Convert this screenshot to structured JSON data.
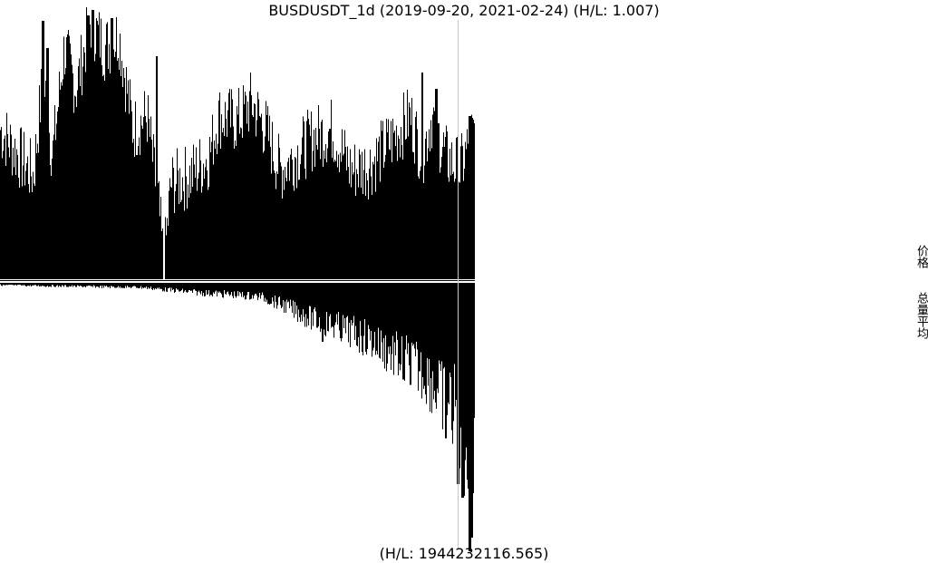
{
  "chart_data": {
    "type": "bar",
    "title": "BUSDUSDT_1d (2019-09-20, 2021-02-24) (H/L: 1.007)",
    "panels": [
      {
        "name": "价格",
        "hl_ratio": 1.007,
        "profile": [
          [
            0,
            0.55
          ],
          [
            0.04,
            0.45
          ],
          [
            0.07,
            0.38
          ],
          [
            0.09,
            0.75
          ],
          [
            0.11,
            0.45
          ],
          [
            0.135,
            0.85
          ],
          [
            0.16,
            0.7
          ],
          [
            0.19,
            0.95
          ],
          [
            0.22,
            0.85
          ],
          [
            0.25,
            0.9
          ],
          [
            0.28,
            0.55
          ],
          [
            0.31,
            0.6
          ],
          [
            0.335,
            0.25
          ],
          [
            0.345,
            0.05
          ],
          [
            0.36,
            0.35
          ],
          [
            0.4,
            0.38
          ],
          [
            0.44,
            0.45
          ],
          [
            0.46,
            0.6
          ],
          [
            0.5,
            0.58
          ],
          [
            0.53,
            0.65
          ],
          [
            0.56,
            0.55
          ],
          [
            0.59,
            0.4
          ],
          [
            0.62,
            0.45
          ],
          [
            0.66,
            0.52
          ],
          [
            0.7,
            0.55
          ],
          [
            0.74,
            0.4
          ],
          [
            0.78,
            0.42
          ],
          [
            0.83,
            0.52
          ],
          [
            0.865,
            0.6
          ],
          [
            0.89,
            0.45
          ],
          [
            0.91,
            0.6
          ],
          [
            0.94,
            0.45
          ],
          [
            0.97,
            0.4
          ],
          [
            1.0,
            0.55
          ]
        ],
        "spikes": [
          [
            0.09,
            0.95
          ],
          [
            0.1,
            0.85
          ],
          [
            0.185,
            0.97
          ],
          [
            0.195,
            0.99
          ],
          [
            0.235,
            0.96
          ],
          [
            0.33,
            0.82
          ],
          [
            0.345,
            0.0
          ],
          [
            0.89,
            0.76
          ],
          [
            0.92,
            0.7
          ],
          [
            0.99,
            0.6
          ]
        ]
      },
      {
        "name": "总量平均",
        "hl_ratio": 1944232116.565,
        "label": "(H/L: 1944232116.565)",
        "profile": [
          [
            0,
            0.01
          ],
          [
            0.3,
            0.02
          ],
          [
            0.4,
            0.04
          ],
          [
            0.55,
            0.06
          ],
          [
            0.6,
            0.1
          ],
          [
            0.66,
            0.16
          ],
          [
            0.72,
            0.2
          ],
          [
            0.78,
            0.25
          ],
          [
            0.84,
            0.33
          ],
          [
            0.9,
            0.4
          ],
          [
            0.93,
            0.5
          ],
          [
            0.96,
            0.55
          ],
          [
            0.985,
            0.75
          ],
          [
            1.0,
            0.72
          ]
        ],
        "spikes": [
          [
            0.68,
            0.22
          ],
          [
            0.85,
            0.36
          ],
          [
            0.865,
            0.38
          ],
          [
            0.94,
            0.58
          ],
          [
            0.965,
            0.75
          ],
          [
            0.975,
            0.8
          ],
          [
            0.99,
            1.0
          ],
          [
            0.995,
            0.95
          ]
        ]
      }
    ],
    "crosshair_x": 0.965
  },
  "legend": [
    "价格",
    "总量平均"
  ]
}
